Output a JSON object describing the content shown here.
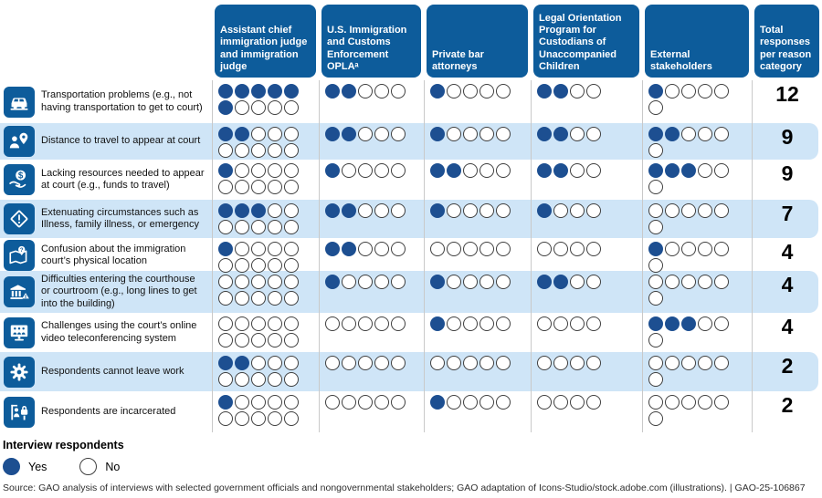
{
  "chart_data": {
    "type": "table",
    "columns": [
      "Assistant chief immigration judge and immigration judge",
      "U.S. Immigration and Customs Enforcement OPLAᵃ",
      "Private bar attorneys",
      "Legal Orientation Program for Custodians of Unaccompanied Children",
      "External stakeholders"
    ],
    "total_column_label": "Total responses per reason category",
    "dots_per_column": [
      10,
      5,
      5,
      4,
      6
    ],
    "rows": [
      {
        "icon": "car-icon",
        "label": "Transportation problems (e.g., not having transportation to get to court)",
        "yes_counts": [
          6,
          2,
          1,
          2,
          1
        ],
        "total": 12
      },
      {
        "icon": "person-location-icon",
        "label": "Distance to travel to appear at court",
        "yes_counts": [
          2,
          2,
          1,
          2,
          2
        ],
        "total": 9
      },
      {
        "icon": "money-hand-icon",
        "label": "Lacking resources needed to appear at court (e.g., funds to travel)",
        "yes_counts": [
          1,
          1,
          2,
          2,
          3
        ],
        "total": 9
      },
      {
        "icon": "warning-diamond-icon",
        "label": "Extenuating circumstances such as Illness, family illness, or emergency",
        "yes_counts": [
          3,
          2,
          1,
          1,
          0
        ],
        "total": 7
      },
      {
        "icon": "map-question-icon",
        "label": "Confusion about the immigration court’s physical location",
        "yes_counts": [
          1,
          2,
          0,
          0,
          1
        ],
        "total": 4
      },
      {
        "icon": "courthouse-warning-icon",
        "label": "Difficulties entering the courthouse or courtroom (e.g., long lines to get into the building)",
        "yes_counts": [
          0,
          1,
          1,
          2,
          0
        ],
        "total": 4
      },
      {
        "icon": "video-conference-icon",
        "label": "Challenges using the court’s online video teleconferencing system",
        "yes_counts": [
          0,
          0,
          1,
          0,
          3
        ],
        "total": 4
      },
      {
        "icon": "gear-icon",
        "label": "Respondents cannot leave work",
        "yes_counts": [
          2,
          0,
          0,
          0,
          0
        ],
        "total": 2
      },
      {
        "icon": "incarcerated-icon",
        "label": "Respondents are incarcerated",
        "yes_counts": [
          1,
          0,
          1,
          0,
          0
        ],
        "total": 2
      }
    ],
    "legend": {
      "title": "Interview respondents",
      "yes": "Yes",
      "no": "No"
    },
    "colors": {
      "header_blue": "#0d5c9b",
      "dot_yes": "#1d4f91",
      "row_stripe": "#cfe5f7",
      "separator": "#c9c9c9"
    }
  },
  "footer": {
    "source": "Source: GAO analysis of interviews with selected government officials and nongovernmental stakeholders; GAO adaptation of Icons-Studio/stock.adobe.com (illustrations).  |  GAO-25-106867"
  }
}
